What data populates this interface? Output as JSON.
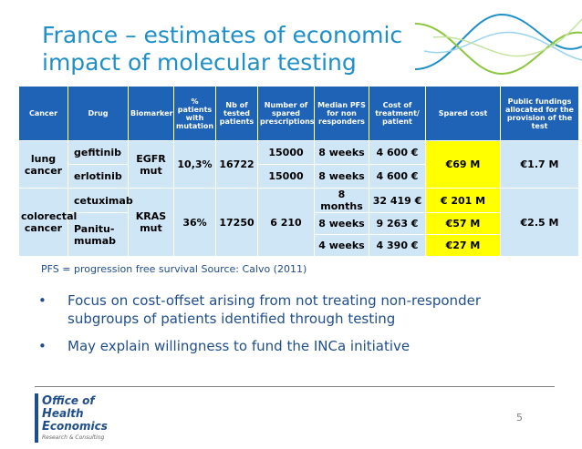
{
  "title": {
    "line1": "France – estimates of economic",
    "line2": "impact of molecular testing"
  },
  "table": {
    "headers": [
      "Cancer",
      "Drug",
      "Biomarker",
      "% patients with mutation",
      "Nb of tested patients",
      "Number of spared prescriptions",
      "Median PFS for non responders",
      "Cost of treatment/ patient",
      "Spared cost",
      "Public fundings allocated for the provision of the test"
    ],
    "lung": {
      "cancer": "lung cancer",
      "drug1": "gefitinib",
      "drug2": "erlotinib",
      "biomarker": "EGFR mut",
      "pct": "10,3%",
      "tested": "16722",
      "spared1": "15000",
      "spared2": "15000",
      "pfs1": "8 weeks",
      "pfs2": "8 weeks",
      "cost1": "4 600 €",
      "cost2": "4 600 €",
      "sparedcost": "€69 M",
      "funding": "€1.7 M"
    },
    "crc": {
      "cancer": "colorectal cancer",
      "drug1": "cetuximab",
      "drug2": "Panitu-mumab",
      "biomarker": "KRAS mut",
      "pct": "36%",
      "tested": "17250",
      "spared": "6 210",
      "pfs1": "8 months",
      "pfs2": "8 weeks",
      "pfs3": "4 weeks",
      "cost1": "32 419 €",
      "cost2": "9 263 €",
      "cost3": "4 390 €",
      "sc1": "€ 201 M",
      "sc2": "€57 M",
      "sc3": "€27 M",
      "funding": "€2.5 M"
    }
  },
  "footnote": "PFS = progression free survival  Source: Calvo (2011)",
  "bullets": [
    "Focus on cost-offset arising from not treating non-responder subgroups of patients identified through testing",
    "May explain willingness to fund the INCa initiative"
  ],
  "bullet_symbol": "•",
  "logo": {
    "line1_cap": "O",
    "line1": "ffice of",
    "line2_cap": "H",
    "line2": "ealth",
    "line3_cap": "E",
    "line3": "conomics",
    "sub": "Research & Consulting"
  },
  "page_number": "5",
  "colors": {
    "accent": "#1f8fc7",
    "header_bg": "#1f63b6",
    "cell_bg": "#cfe6f7",
    "highlight": "#ffff00",
    "text_dark": "#1f4e8c"
  }
}
